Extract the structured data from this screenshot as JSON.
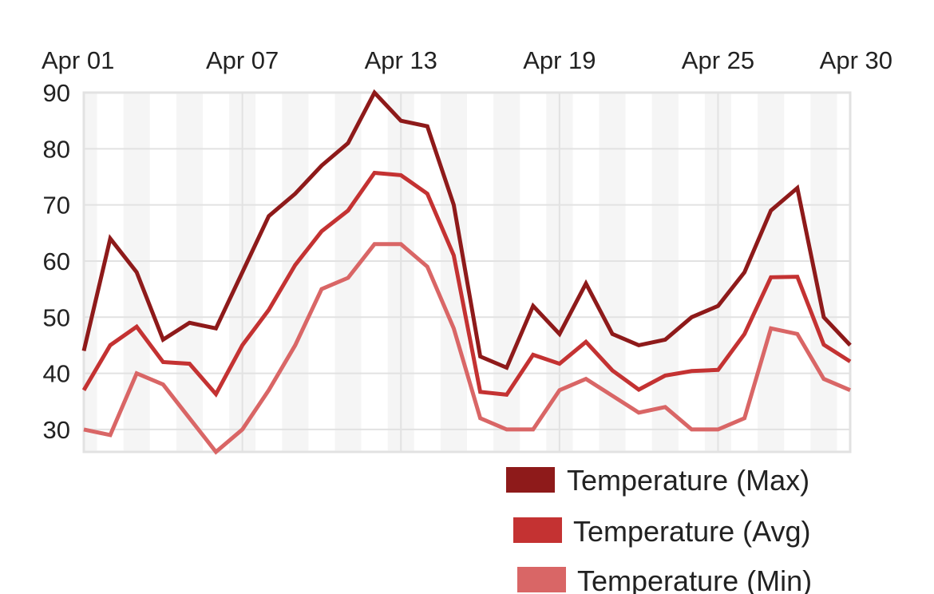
{
  "chart_data": {
    "type": "line",
    "title": "",
    "xlabel": "",
    "ylabel": "",
    "x": [
      "Apr 01",
      "Apr 02",
      "Apr 03",
      "Apr 04",
      "Apr 05",
      "Apr 06",
      "Apr 07",
      "Apr 08",
      "Apr 09",
      "Apr 10",
      "Apr 11",
      "Apr 12",
      "Apr 13",
      "Apr 14",
      "Apr 15",
      "Apr 16",
      "Apr 17",
      "Apr 18",
      "Apr 19",
      "Apr 20",
      "Apr 21",
      "Apr 22",
      "Apr 23",
      "Apr 24",
      "Apr 25",
      "Apr 26",
      "Apr 27",
      "Apr 28",
      "Apr 29",
      "Apr 30"
    ],
    "x_tick_labels": [
      "Apr 01",
      "Apr 07",
      "Apr 13",
      "Apr 19",
      "Apr 25",
      "Apr 30"
    ],
    "y_ticks": [
      90,
      80,
      70,
      60,
      50,
      40,
      30
    ],
    "ylim": [
      26,
      90
    ],
    "x_axis_position": "top",
    "grid": true,
    "legend_position": "bottom-right",
    "series": [
      {
        "name": "Temperature (Max)",
        "color": "#8e1a1a",
        "values": [
          44,
          64,
          58,
          46,
          49,
          48,
          58,
          68,
          72,
          77,
          81,
          90,
          85,
          84,
          70,
          43,
          41,
          52,
          47,
          56,
          47,
          45,
          46,
          50,
          52,
          58,
          69,
          73,
          50,
          45
        ]
      },
      {
        "name": "Temperature (Avg)",
        "color": "#c43232",
        "values": [
          37,
          45,
          48.3,
          42,
          41.7,
          36.3,
          45,
          51.3,
          59.3,
          65.3,
          69,
          75.7,
          75.3,
          72,
          61,
          36.7,
          36.2,
          43.3,
          41.7,
          45.6,
          40.5,
          37.1,
          39.6,
          40.4,
          40.6,
          47,
          57.1,
          57.2,
          45.1,
          42.1
        ]
      },
      {
        "name": "Temperature (Min)",
        "color": "#d96666",
        "values": [
          30,
          29,
          40,
          38,
          32,
          26,
          30,
          37,
          45,
          55,
          57,
          63,
          63,
          59,
          48,
          32,
          30,
          30,
          37,
          39,
          36,
          33,
          34,
          30,
          30,
          32,
          48,
          47,
          39,
          37
        ]
      }
    ]
  }
}
